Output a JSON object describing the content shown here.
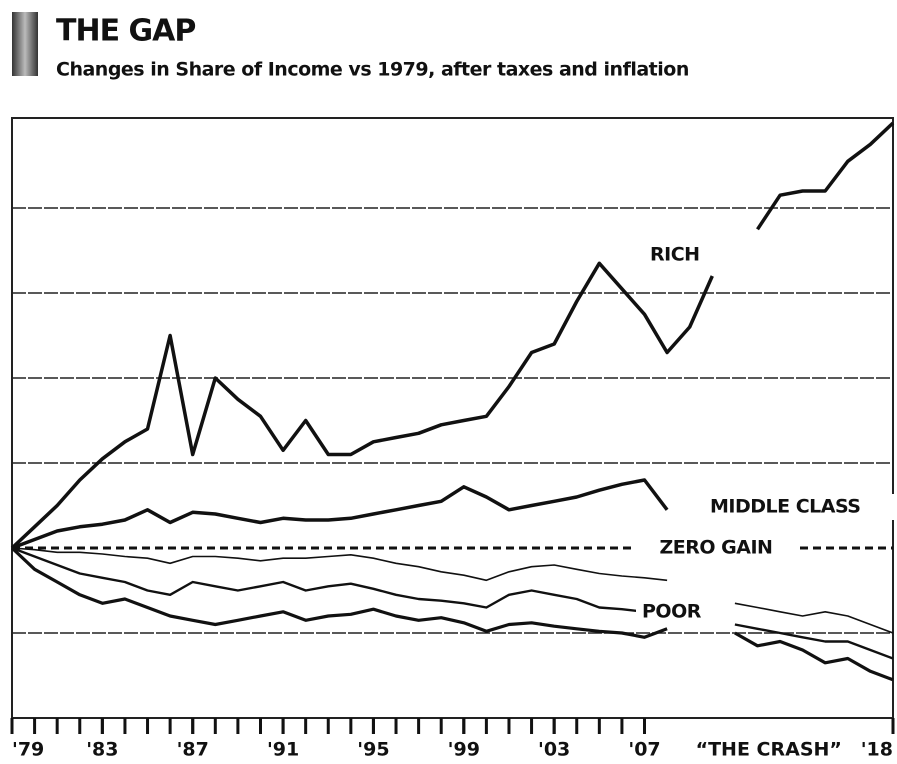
{
  "chart_data": {
    "type": "line",
    "title": "THE GAP",
    "subtitle": "Changes in Share of Income vs 1979, after taxes and inflation",
    "x": [
      1979,
      1980,
      1981,
      1982,
      1983,
      1984,
      1985,
      1986,
      1987,
      1988,
      1989,
      1990,
      1991,
      1992,
      1993,
      1994,
      1995,
      1996,
      1997,
      1998,
      1999,
      2000,
      2001,
      2002,
      2003,
      2004,
      2005,
      2006,
      2007,
      2008,
      2009,
      2010,
      2011,
      2012,
      2013,
      2014,
      2015,
      2016,
      2017,
      2018
    ],
    "xlim": [
      1979,
      2018
    ],
    "xticks": [
      {
        "value": 1979,
        "label": "'79"
      },
      {
        "value": 1983,
        "label": "'83"
      },
      {
        "value": 1987,
        "label": "'87"
      },
      {
        "value": 1991,
        "label": "'91"
      },
      {
        "value": 1995,
        "label": "'95"
      },
      {
        "value": 1999,
        "label": "'99"
      },
      {
        "value": 2003,
        "label": "'03"
      },
      {
        "value": 2007,
        "label": "'07"
      },
      {
        "value": 2018,
        "label": "'18"
      }
    ],
    "xminorticks": [
      1979,
      1980,
      1981,
      1982,
      1983,
      1984,
      1985,
      1986,
      1987,
      1988,
      1989,
      1990,
      1991,
      1992,
      1993,
      1994,
      1995,
      1996,
      1997,
      1998,
      1999,
      2000,
      2001,
      2002,
      2003,
      2004,
      2005,
      2006,
      2007
    ],
    "annotations": [
      {
        "text": "“THE CRASH”",
        "x": 2012.5
      }
    ],
    "ylim": [
      -2,
      5
    ],
    "yticks": [
      -1,
      1,
      2,
      3,
      4
    ],
    "grid": true,
    "zero_line": {
      "label": "ZERO GAIN",
      "value": 0
    },
    "series": [
      {
        "name": "RICH",
        "color": "#111111",
        "values": [
          0,
          0.25,
          0.5,
          0.8,
          1.05,
          1.25,
          1.4,
          2.5,
          1.1,
          2.0,
          1.75,
          1.55,
          1.15,
          1.5,
          1.1,
          1.1,
          1.25,
          1.3,
          1.35,
          1.45,
          1.5,
          1.55,
          1.9,
          2.3,
          2.4,
          2.9,
          3.35,
          3.05,
          2.75,
          2.3,
          2.6,
          3.2,
          null,
          3.75,
          4.15,
          4.2,
          4.2,
          4.55,
          4.75,
          5.0
        ]
      },
      {
        "name": "MIDDLE CLASS",
        "color": "#111111",
        "values": [
          0,
          0.1,
          0.2,
          0.25,
          0.28,
          0.33,
          0.45,
          0.3,
          0.42,
          0.4,
          0.35,
          0.3,
          0.35,
          0.33,
          0.33,
          0.35,
          0.4,
          0.45,
          0.5,
          0.55,
          0.72,
          0.6,
          0.45,
          0.5,
          0.55,
          0.6,
          0.68,
          0.75,
          0.8,
          0.45,
          null,
          null,
          null,
          null,
          null,
          null,
          null,
          0.5,
          0.5,
          0.45
        ]
      },
      {
        "name": "POOR",
        "color": "#111111",
        "values": [
          0,
          -0.02,
          -0.05,
          -0.05,
          -0.07,
          -0.1,
          -0.12,
          -0.18,
          -0.1,
          -0.1,
          -0.12,
          -0.15,
          -0.12,
          -0.12,
          -0.1,
          -0.08,
          -0.12,
          -0.18,
          -0.22,
          -0.28,
          -0.32,
          -0.38,
          -0.28,
          -0.22,
          -0.2,
          -0.25,
          -0.3,
          -0.33,
          -0.35,
          -0.38,
          null,
          null,
          -0.65,
          -0.7,
          -0.75,
          -0.8,
          -0.75,
          -0.8,
          -0.9,
          -1.0
        ]
      },
      {
        "color": "#111111",
        "values": [
          0,
          -0.1,
          -0.2,
          -0.3,
          -0.35,
          -0.4,
          -0.5,
          -0.55,
          -0.4,
          -0.45,
          -0.5,
          -0.45,
          -0.4,
          -0.5,
          -0.45,
          -0.42,
          -0.48,
          -0.55,
          -0.6,
          -0.62,
          -0.65,
          -0.7,
          -0.55,
          -0.5,
          -0.55,
          -0.6,
          -0.7,
          -0.72,
          -0.75,
          -0.75,
          null,
          null,
          -0.9,
          -0.95,
          -1.0,
          -1.05,
          -1.1,
          -1.1,
          -1.2,
          -1.3
        ]
      },
      {
        "color": "#111111",
        "values": [
          0,
          -0.25,
          -0.4,
          -0.55,
          -0.65,
          -0.6,
          -0.7,
          -0.8,
          -0.85,
          -0.9,
          -0.85,
          -0.8,
          -0.75,
          -0.85,
          -0.8,
          -0.78,
          -0.72,
          -0.8,
          -0.85,
          -0.82,
          -0.88,
          -0.98,
          -0.9,
          -0.88,
          -0.92,
          -0.95,
          -0.98,
          -1.0,
          -1.05,
          -0.95,
          null,
          null,
          -1.0,
          -1.15,
          -1.1,
          -1.2,
          -1.35,
          -1.3,
          -1.45,
          -1.55
        ]
      }
    ]
  }
}
